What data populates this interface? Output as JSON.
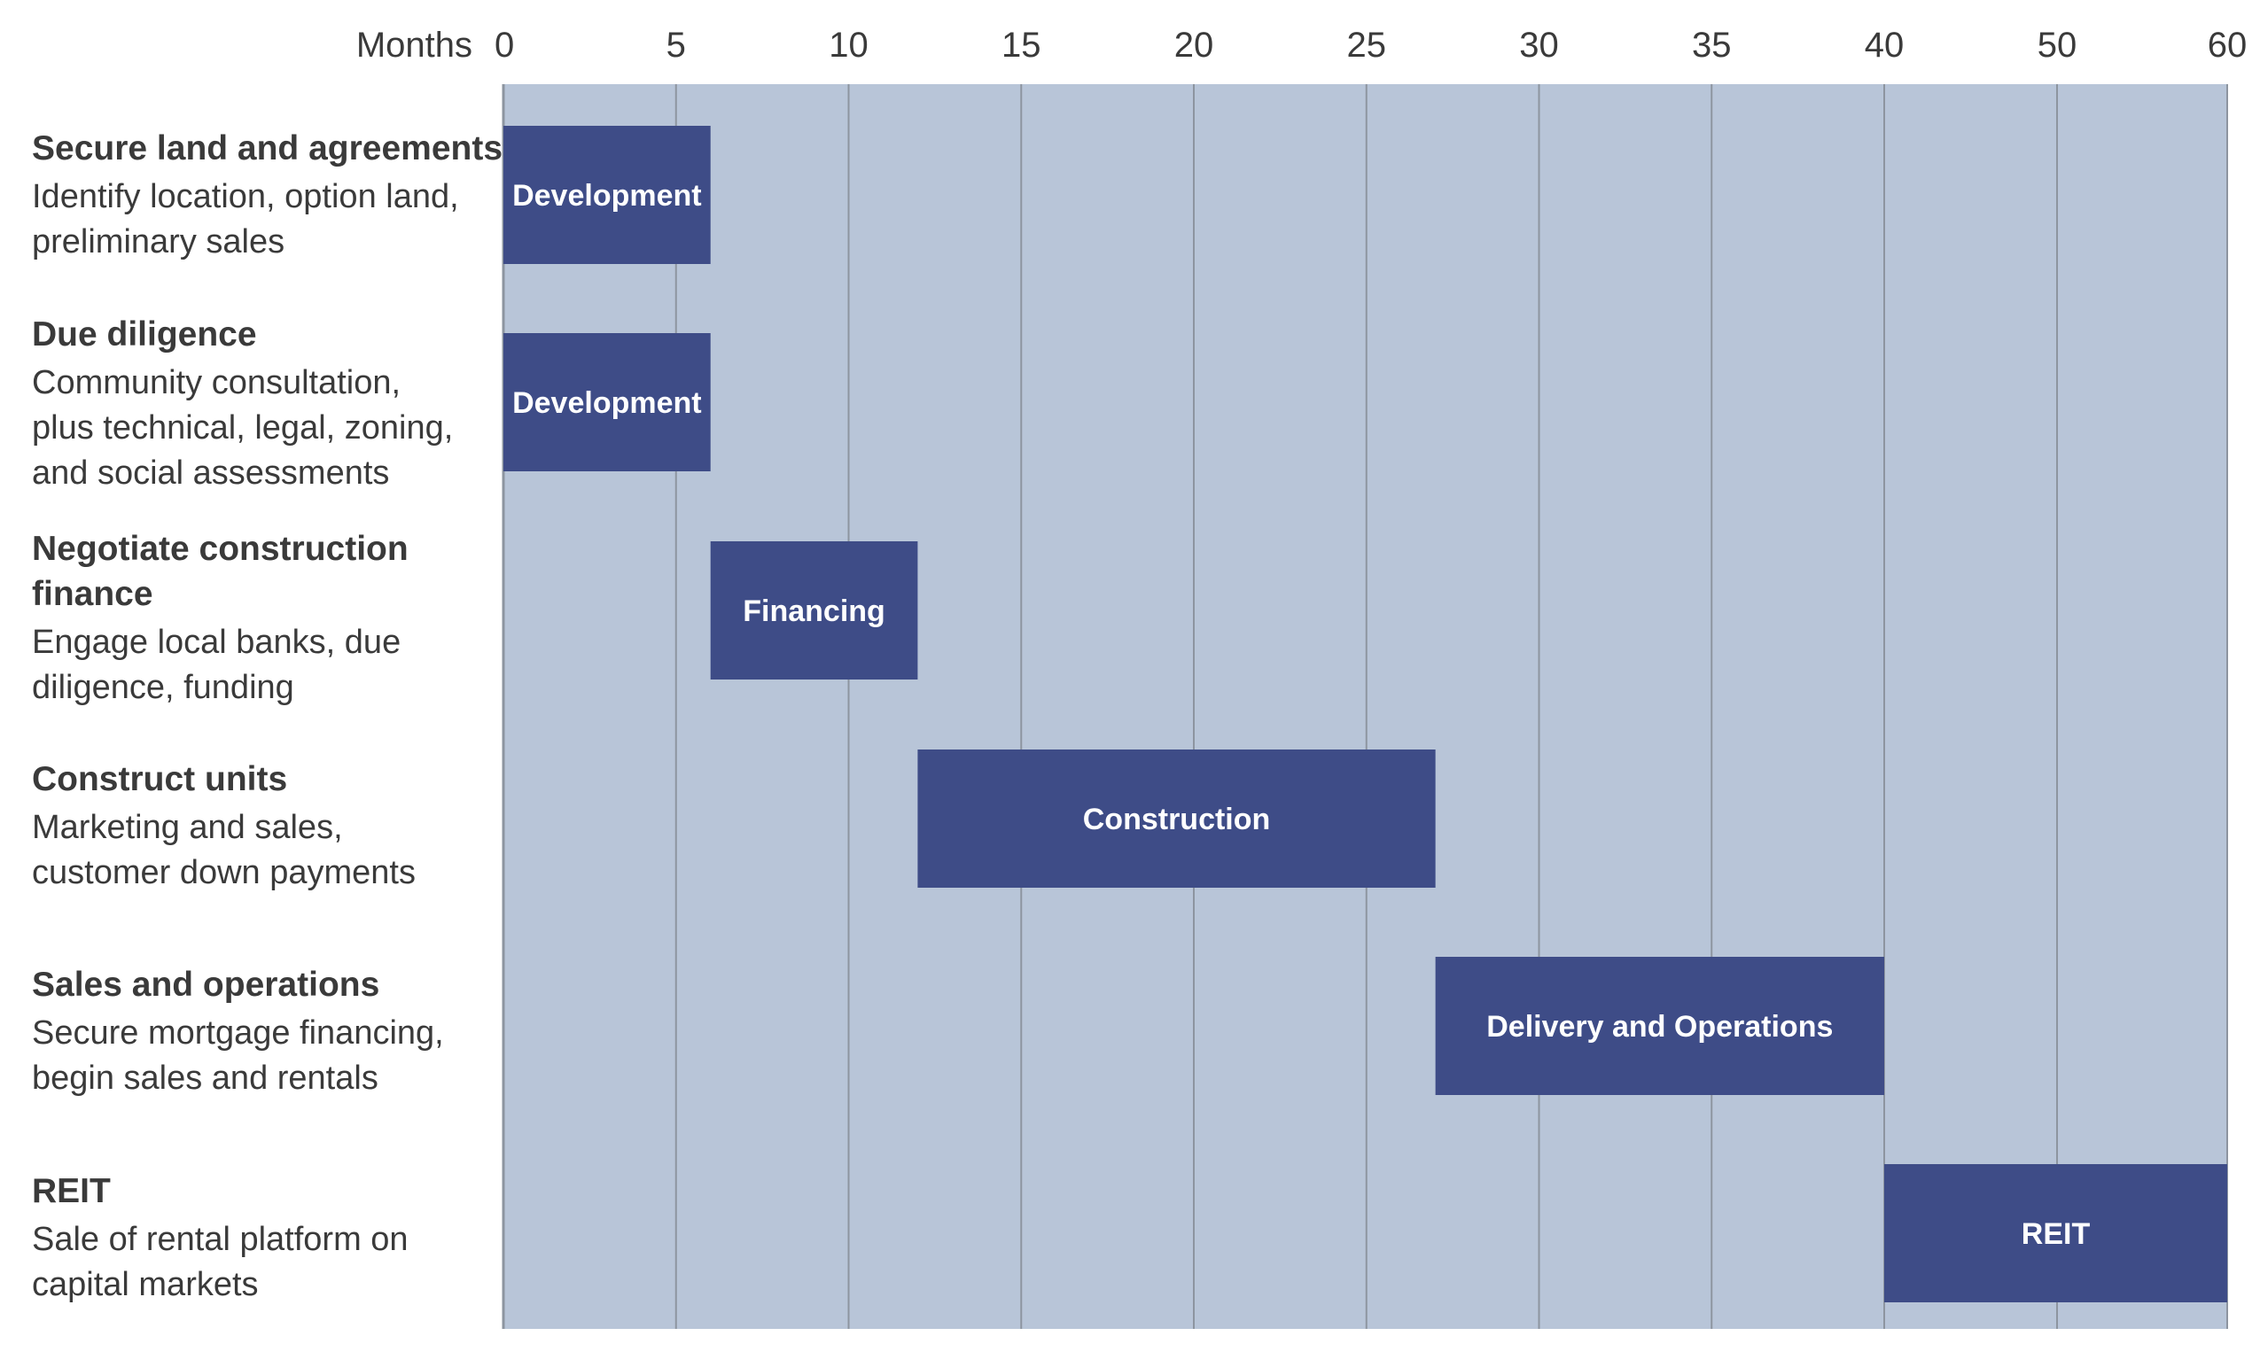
{
  "chart_data": {
    "type": "bar",
    "subtype": "gantt",
    "x_unit_label": "Months",
    "x_ticks": [
      "0",
      "5",
      "10",
      "15",
      "20",
      "25",
      "30",
      "35",
      "40",
      "50",
      "60"
    ],
    "x_tick_values": [
      0,
      5,
      10,
      15,
      20,
      25,
      30,
      35,
      40,
      50,
      60
    ],
    "grid": true,
    "colors": {
      "background": "#b8c5d8",
      "bar": "#3e4c87",
      "grid": "#8d95a0",
      "text": "#3a3a3a"
    },
    "tasks": [
      {
        "title_lines": [
          "Secure land and agreements"
        ],
        "desc_lines": [
          "Identify location, option land,",
          "preliminary sales"
        ],
        "bar_label": "Development",
        "start": 0,
        "end": 6
      },
      {
        "title_lines": [
          "Due diligence"
        ],
        "desc_lines": [
          "Community consultation,",
          "plus technical, legal, zoning,",
          "and social assessments"
        ],
        "bar_label": "Development",
        "start": 0,
        "end": 6
      },
      {
        "title_lines": [
          "Negotiate construction",
          "finance"
        ],
        "desc_lines": [
          "Engage local banks, due",
          "diligence, funding"
        ],
        "bar_label": "Financing",
        "start": 6,
        "end": 12
      },
      {
        "title_lines": [
          "Construct units"
        ],
        "desc_lines": [
          "Marketing and sales,",
          "customer down payments"
        ],
        "bar_label": "Construction",
        "start": 12,
        "end": 27
      },
      {
        "title_lines": [
          "Sales and operations"
        ],
        "desc_lines": [
          "Secure mortgage financing,",
          "begin sales and rentals"
        ],
        "bar_label": "Delivery and Operations",
        "start": 27,
        "end": 40
      },
      {
        "title_lines": [
          "REIT"
        ],
        "desc_lines": [
          "Sale of rental platform on",
          "capital markets"
        ],
        "bar_label": "REIT",
        "start": 40,
        "end": 60
      }
    ]
  }
}
